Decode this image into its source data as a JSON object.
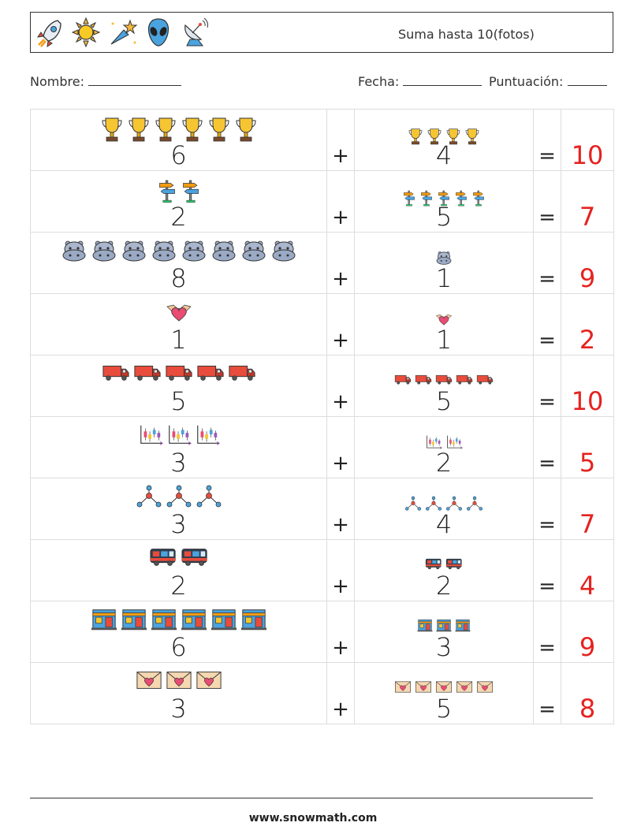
{
  "header": {
    "title": "Suma hasta 10(fotos)",
    "icons": [
      "rocket-icon",
      "sun-icon",
      "shooting-star-icon",
      "alien-icon",
      "satellite-dish-icon"
    ]
  },
  "meta": {
    "name_label": "Nombre:",
    "date_label": "Fecha:",
    "score_label": "Puntuación:"
  },
  "rows": [
    {
      "a": "6",
      "b": "4",
      "sum": "10",
      "icon": "trophy"
    },
    {
      "a": "2",
      "b": "5",
      "sum": "7",
      "icon": "signpost"
    },
    {
      "a": "8",
      "b": "1",
      "sum": "9",
      "icon": "hippo"
    },
    {
      "a": "1",
      "b": "1",
      "sum": "2",
      "icon": "heart"
    },
    {
      "a": "5",
      "b": "5",
      "sum": "10",
      "icon": "truck"
    },
    {
      "a": "3",
      "b": "2",
      "sum": "5",
      "icon": "chart"
    },
    {
      "a": "3",
      "b": "4",
      "sum": "7",
      "icon": "network"
    },
    {
      "a": "2",
      "b": "2",
      "sum": "4",
      "icon": "bus"
    },
    {
      "a": "6",
      "b": "3",
      "sum": "9",
      "icon": "shop"
    },
    {
      "a": "3",
      "b": "5",
      "sum": "8",
      "icon": "envelope"
    }
  ],
  "operators": {
    "plus": "+",
    "equals": "="
  },
  "footer": {
    "text": "www.snowmath.com"
  },
  "colors": {
    "answer": "#e5221f",
    "border": "#dddddd"
  }
}
